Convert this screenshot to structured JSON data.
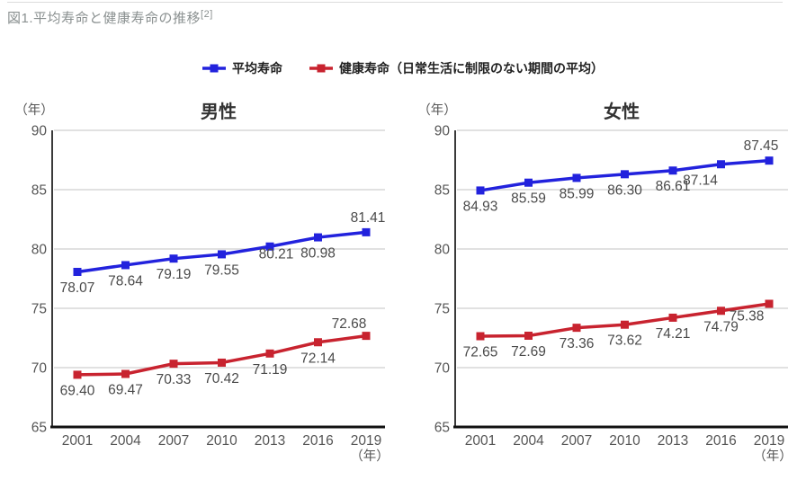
{
  "page": {
    "title": "図1.平均寿命と健康寿命の推移",
    "reference": "[2]"
  },
  "legend": [
    {
      "label": "平均寿命",
      "color": "#2222dd"
    },
    {
      "label": "健康寿命（日常生活に制限のない期間の平均）",
      "color": "#c8232f"
    }
  ],
  "chart_data": [
    {
      "type": "line",
      "title": "男性",
      "y_unit_label": "（年）",
      "x_unit_label": "（年）",
      "categories": [
        "2001",
        "2004",
        "2007",
        "2010",
        "2013",
        "2016",
        "2019"
      ],
      "ylim": [
        65,
        90
      ],
      "yticks": [
        90,
        85,
        80,
        75,
        70,
        65
      ],
      "grid": "horizontal",
      "series": [
        {
          "name": "平均寿命",
          "color": "#2222dd",
          "values": [
            78.07,
            78.64,
            79.19,
            79.55,
            80.21,
            80.98,
            81.41
          ]
        },
        {
          "name": "健康寿命（日常生活に制限のない期間の平均）",
          "color": "#c8232f",
          "values": [
            69.4,
            69.47,
            70.33,
            70.42,
            71.19,
            72.14,
            72.68
          ]
        }
      ]
    },
    {
      "type": "line",
      "title": "女性",
      "y_unit_label": "（年）",
      "x_unit_label": "（年）",
      "categories": [
        "2001",
        "2004",
        "2007",
        "2010",
        "2013",
        "2016",
        "2019"
      ],
      "ylim": [
        65,
        90
      ],
      "yticks": [
        90,
        85,
        80,
        75,
        70,
        65
      ],
      "grid": "horizontal",
      "series": [
        {
          "name": "平均寿命",
          "color": "#2222dd",
          "values": [
            84.93,
            85.59,
            85.99,
            86.3,
            86.61,
            87.14,
            87.45
          ]
        },
        {
          "name": "健康寿命（日常生活に制限のない期間の平均）",
          "color": "#c8232f",
          "values": [
            72.65,
            72.69,
            73.36,
            73.62,
            74.21,
            74.79,
            75.38
          ]
        }
      ]
    }
  ]
}
